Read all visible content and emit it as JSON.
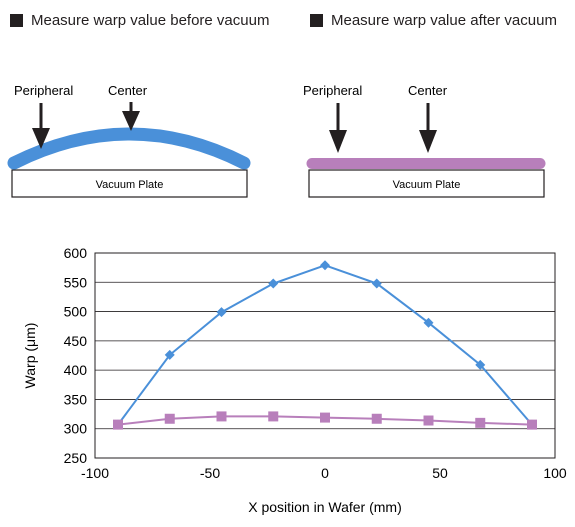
{
  "legend": {
    "before": "Measure warp value before vacuum",
    "after": "Measure warp value after vacuum"
  },
  "diagram_before": {
    "peripheral_label": "Peripheral",
    "center_label": "Center",
    "plate_label": "Vacuum Plate",
    "wafer_color": "#4a90d9"
  },
  "diagram_after": {
    "peripheral_label": "Peripheral",
    "center_label": "Center",
    "plate_label": "Vacuum Plate",
    "wafer_color": "#b87fbb"
  },
  "chart_data": {
    "type": "line",
    "xlabel": "X position in Wafer (mm)",
    "ylabel": "Warp (μm)",
    "xlim": [
      -100,
      100
    ],
    "ylim": [
      250,
      600
    ],
    "xticks": [
      -100,
      -50,
      0,
      50,
      100
    ],
    "yticks": [
      250,
      300,
      350,
      400,
      450,
      500,
      550,
      600
    ],
    "grid": "horizontal",
    "series": [
      {
        "marker": "diamond",
        "color": "#4a90d9",
        "x": [
          -90,
          -67.5,
          -45,
          -22.5,
          0,
          22.5,
          45,
          67.5,
          90
        ],
        "y": [
          307,
          426,
          499,
          548,
          579,
          548,
          481,
          409,
          307
        ]
      },
      {
        "marker": "square",
        "color": "#b87fbb",
        "x": [
          -90,
          -67.5,
          -45,
          -22.5,
          0,
          22.5,
          45,
          67.5,
          90
        ],
        "y": [
          307,
          317,
          321,
          321,
          319,
          317,
          314,
          310,
          307
        ]
      }
    ]
  }
}
